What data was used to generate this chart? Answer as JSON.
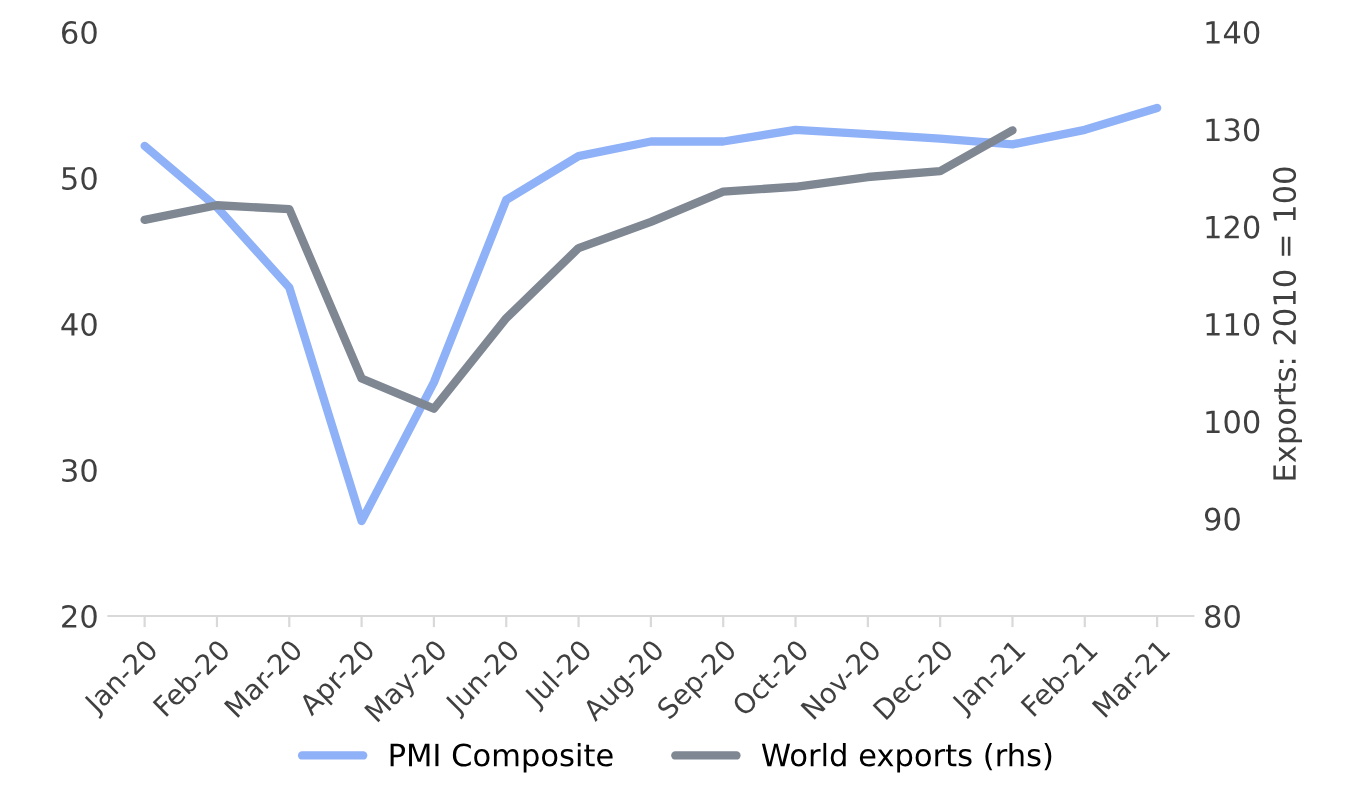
{
  "chart_data": {
    "type": "line",
    "y2label": "Exports: 2010 = 100",
    "categories": [
      "Jan-20",
      "Feb-20",
      "Mar-20",
      "Apr-20",
      "May-20",
      "Jun-20",
      "Jul-20",
      "Aug-20",
      "Sep-20",
      "Oct-20",
      "Nov-20",
      "Dec-20",
      "Jan-21",
      "Feb-21",
      "Mar-21"
    ],
    "series": [
      {
        "name": "PMI Composite",
        "color": "#8fb1f7",
        "values": [
          52.2,
          48,
          42.5,
          26.5,
          36,
          48.5,
          51.5,
          52.5,
          52.5,
          53.3,
          53,
          52.7,
          52.3,
          53.3,
          54.8
        ]
      },
      {
        "name": "World exports (rhs)",
        "color": "#7f8793",
        "axis": "y2",
        "values": [
          120.7,
          122.2,
          121.8,
          104.4,
          101.3,
          110.6,
          117.8,
          120.5,
          123.6,
          124.1,
          125.1,
          125.7,
          129.9,
          null,
          null
        ]
      }
    ],
    "ylim": [
      20,
      60
    ],
    "yticks": [
      20,
      30,
      40,
      50,
      60
    ],
    "y2lim": [
      80,
      140
    ],
    "y2ticks": [
      80,
      90,
      100,
      110,
      120,
      130,
      140
    ],
    "grid": false,
    "legend": "bottom",
    "line_style": "solid",
    "marker": "none"
  }
}
